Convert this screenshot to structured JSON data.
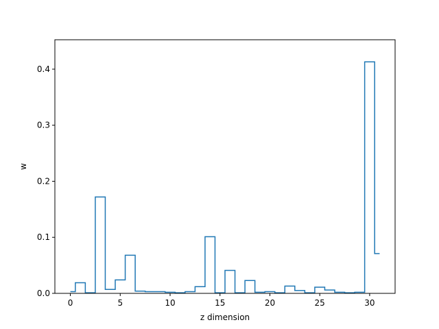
{
  "chart_data": {
    "type": "line",
    "drawstyle": "steps-mid",
    "xlabel": "z dimension",
    "ylabel": "w",
    "xlim": [
      -1.55,
      32.55
    ],
    "ylim": [
      0,
      0.4525
    ],
    "x_ticks": [
      0,
      5,
      10,
      15,
      20,
      25,
      30
    ],
    "y_ticks": [
      0.0,
      0.1,
      0.2,
      0.3,
      0.4
    ],
    "x_tick_labels": [
      "0",
      "5",
      "10",
      "15",
      "20",
      "25",
      "30"
    ],
    "y_tick_labels": [
      "0.0",
      "0.1",
      "0.2",
      "0.3",
      "0.4"
    ],
    "grid": false,
    "line_color": "#1f77b4",
    "series": [
      {
        "x": [
          0,
          1,
          2,
          3,
          4,
          5,
          6,
          7,
          8,
          9,
          10,
          11,
          12,
          13,
          14,
          15,
          16,
          17,
          18,
          19,
          20,
          21,
          22,
          23,
          24,
          25,
          26,
          27,
          28,
          29,
          30,
          31
        ],
        "values": [
          0.003,
          0.019,
          0.001,
          0.172,
          0.007,
          0.024,
          0.068,
          0.004,
          0.003,
          0.003,
          0.002,
          0.001,
          0.003,
          0.012,
          0.101,
          0.001,
          0.041,
          0.001,
          0.023,
          0.002,
          0.003,
          0.001,
          0.013,
          0.005,
          0.001,
          0.011,
          0.006,
          0.002,
          0.001,
          0.002,
          0.413,
          0.071
        ]
      }
    ]
  }
}
